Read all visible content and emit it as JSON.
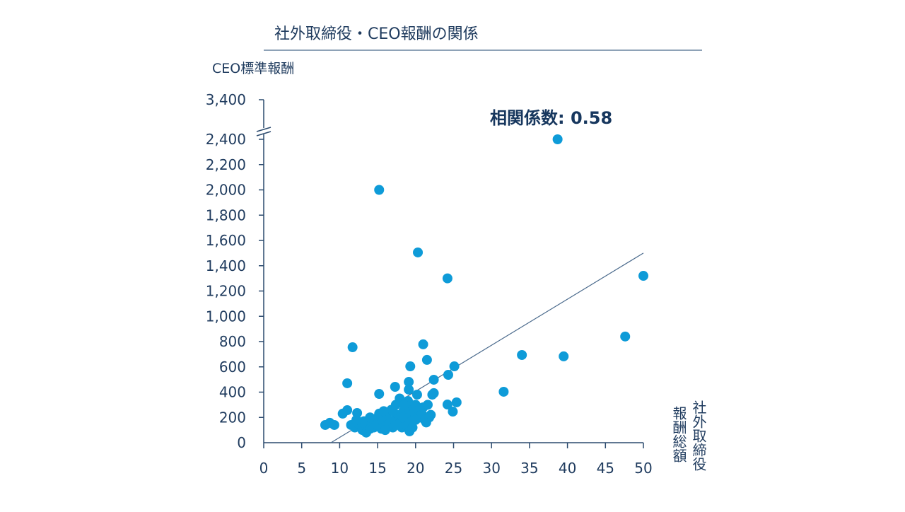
{
  "chart_data": {
    "type": "scatter",
    "title": "社外取締役・CEO報酬の関係",
    "ylabel": "CEO標準報酬",
    "xlabel_lines": [
      "社外取締役",
      "報酬総額"
    ],
    "annotation": "相関係数: 0.58",
    "xlim": [
      0,
      50
    ],
    "ylim": [
      0,
      2400
    ],
    "y_break_top_tick": "3,400",
    "y_axis_broken": true,
    "grid": false,
    "x_ticks": [
      "0",
      "5",
      "10",
      "15",
      "20",
      "25",
      "30",
      "35",
      "40",
      "45",
      "50"
    ],
    "y_ticks": [
      "0",
      "200",
      "400",
      "600",
      "800",
      "1,000",
      "1,200",
      "1,400",
      "1,600",
      "1,800",
      "2,000",
      "2,200",
      "2,400"
    ],
    "point_color": "#0e9bd8",
    "trendline": {
      "color": "#4a6a8c",
      "points": [
        [
          8.85,
          0
        ],
        [
          50,
          1500
        ]
      ]
    },
    "points": [
      [
        38.7,
        2400
      ],
      [
        15.2,
        2000
      ],
      [
        20.3,
        1505
      ],
      [
        24.2,
        1300
      ],
      [
        50,
        1320
      ],
      [
        47.6,
        840
      ],
      [
        34.0,
        694
      ],
      [
        39.5,
        683
      ],
      [
        31.6,
        403
      ],
      [
        11.7,
        755
      ],
      [
        21.0,
        778
      ],
      [
        19.3,
        604
      ],
      [
        21.5,
        655
      ],
      [
        25.1,
        604
      ],
      [
        11.0,
        470
      ],
      [
        15.2,
        386
      ],
      [
        17.3,
        442
      ],
      [
        19.1,
        481
      ],
      [
        22.4,
        498
      ],
      [
        24.3,
        537
      ],
      [
        22.4,
        392
      ],
      [
        24.2,
        302
      ],
      [
        25.4,
        319
      ],
      [
        24.9,
        246
      ],
      [
        8.1,
        140
      ],
      [
        8.7,
        157
      ],
      [
        9.3,
        140
      ],
      [
        10.4,
        230
      ],
      [
        11.0,
        257
      ],
      [
        12.3,
        235
      ],
      [
        11.5,
        140
      ],
      [
        12,
        120
      ],
      [
        12.5,
        150
      ],
      [
        13,
        100
      ],
      [
        13.2,
        170
      ],
      [
        13.5,
        80
      ],
      [
        13.8,
        130
      ],
      [
        14,
        110
      ],
      [
        14.2,
        160
      ],
      [
        14.5,
        120
      ],
      [
        14.8,
        190
      ],
      [
        15,
        140
      ],
      [
        15.2,
        230
      ],
      [
        15.5,
        110
      ],
      [
        15.7,
        170
      ],
      [
        16,
        130
      ],
      [
        16.2,
        200
      ],
      [
        16.5,
        150
      ],
      [
        16.8,
        260
      ],
      [
        17,
        120
      ],
      [
        17.2,
        180
      ],
      [
        17.4,
        300
      ],
      [
        17.5,
        140
      ],
      [
        17.7,
        220
      ],
      [
        17.9,
        350
      ],
      [
        18,
        160
      ],
      [
        18.2,
        120
      ],
      [
        18.4,
        250
      ],
      [
        18.6,
        190
      ],
      [
        18.8,
        140
      ],
      [
        19,
        280
      ],
      [
        19,
        330
      ],
      [
        19.1,
        420
      ],
      [
        19.2,
        90
      ],
      [
        19.3,
        210
      ],
      [
        19.5,
        170
      ],
      [
        19.8,
        240
      ],
      [
        20,
        300
      ],
      [
        20.2,
        380
      ],
      [
        20.4,
        260
      ],
      [
        20.6,
        200
      ],
      [
        20.8,
        230
      ],
      [
        21,
        280
      ],
      [
        21.2,
        180
      ],
      [
        21.4,
        160
      ],
      [
        21.6,
        300
      ],
      [
        21.8,
        200
      ],
      [
        22,
        220
      ],
      [
        22.2,
        380
      ],
      [
        16,
        100
      ],
      [
        17,
        250
      ],
      [
        18.5,
        300
      ],
      [
        14,
        200
      ],
      [
        15.8,
        250
      ],
      [
        13,
        160
      ],
      [
        12.2,
        180
      ],
      [
        20,
        180
      ],
      [
        19.6,
        120
      ],
      [
        18.3,
        200
      ]
    ]
  }
}
